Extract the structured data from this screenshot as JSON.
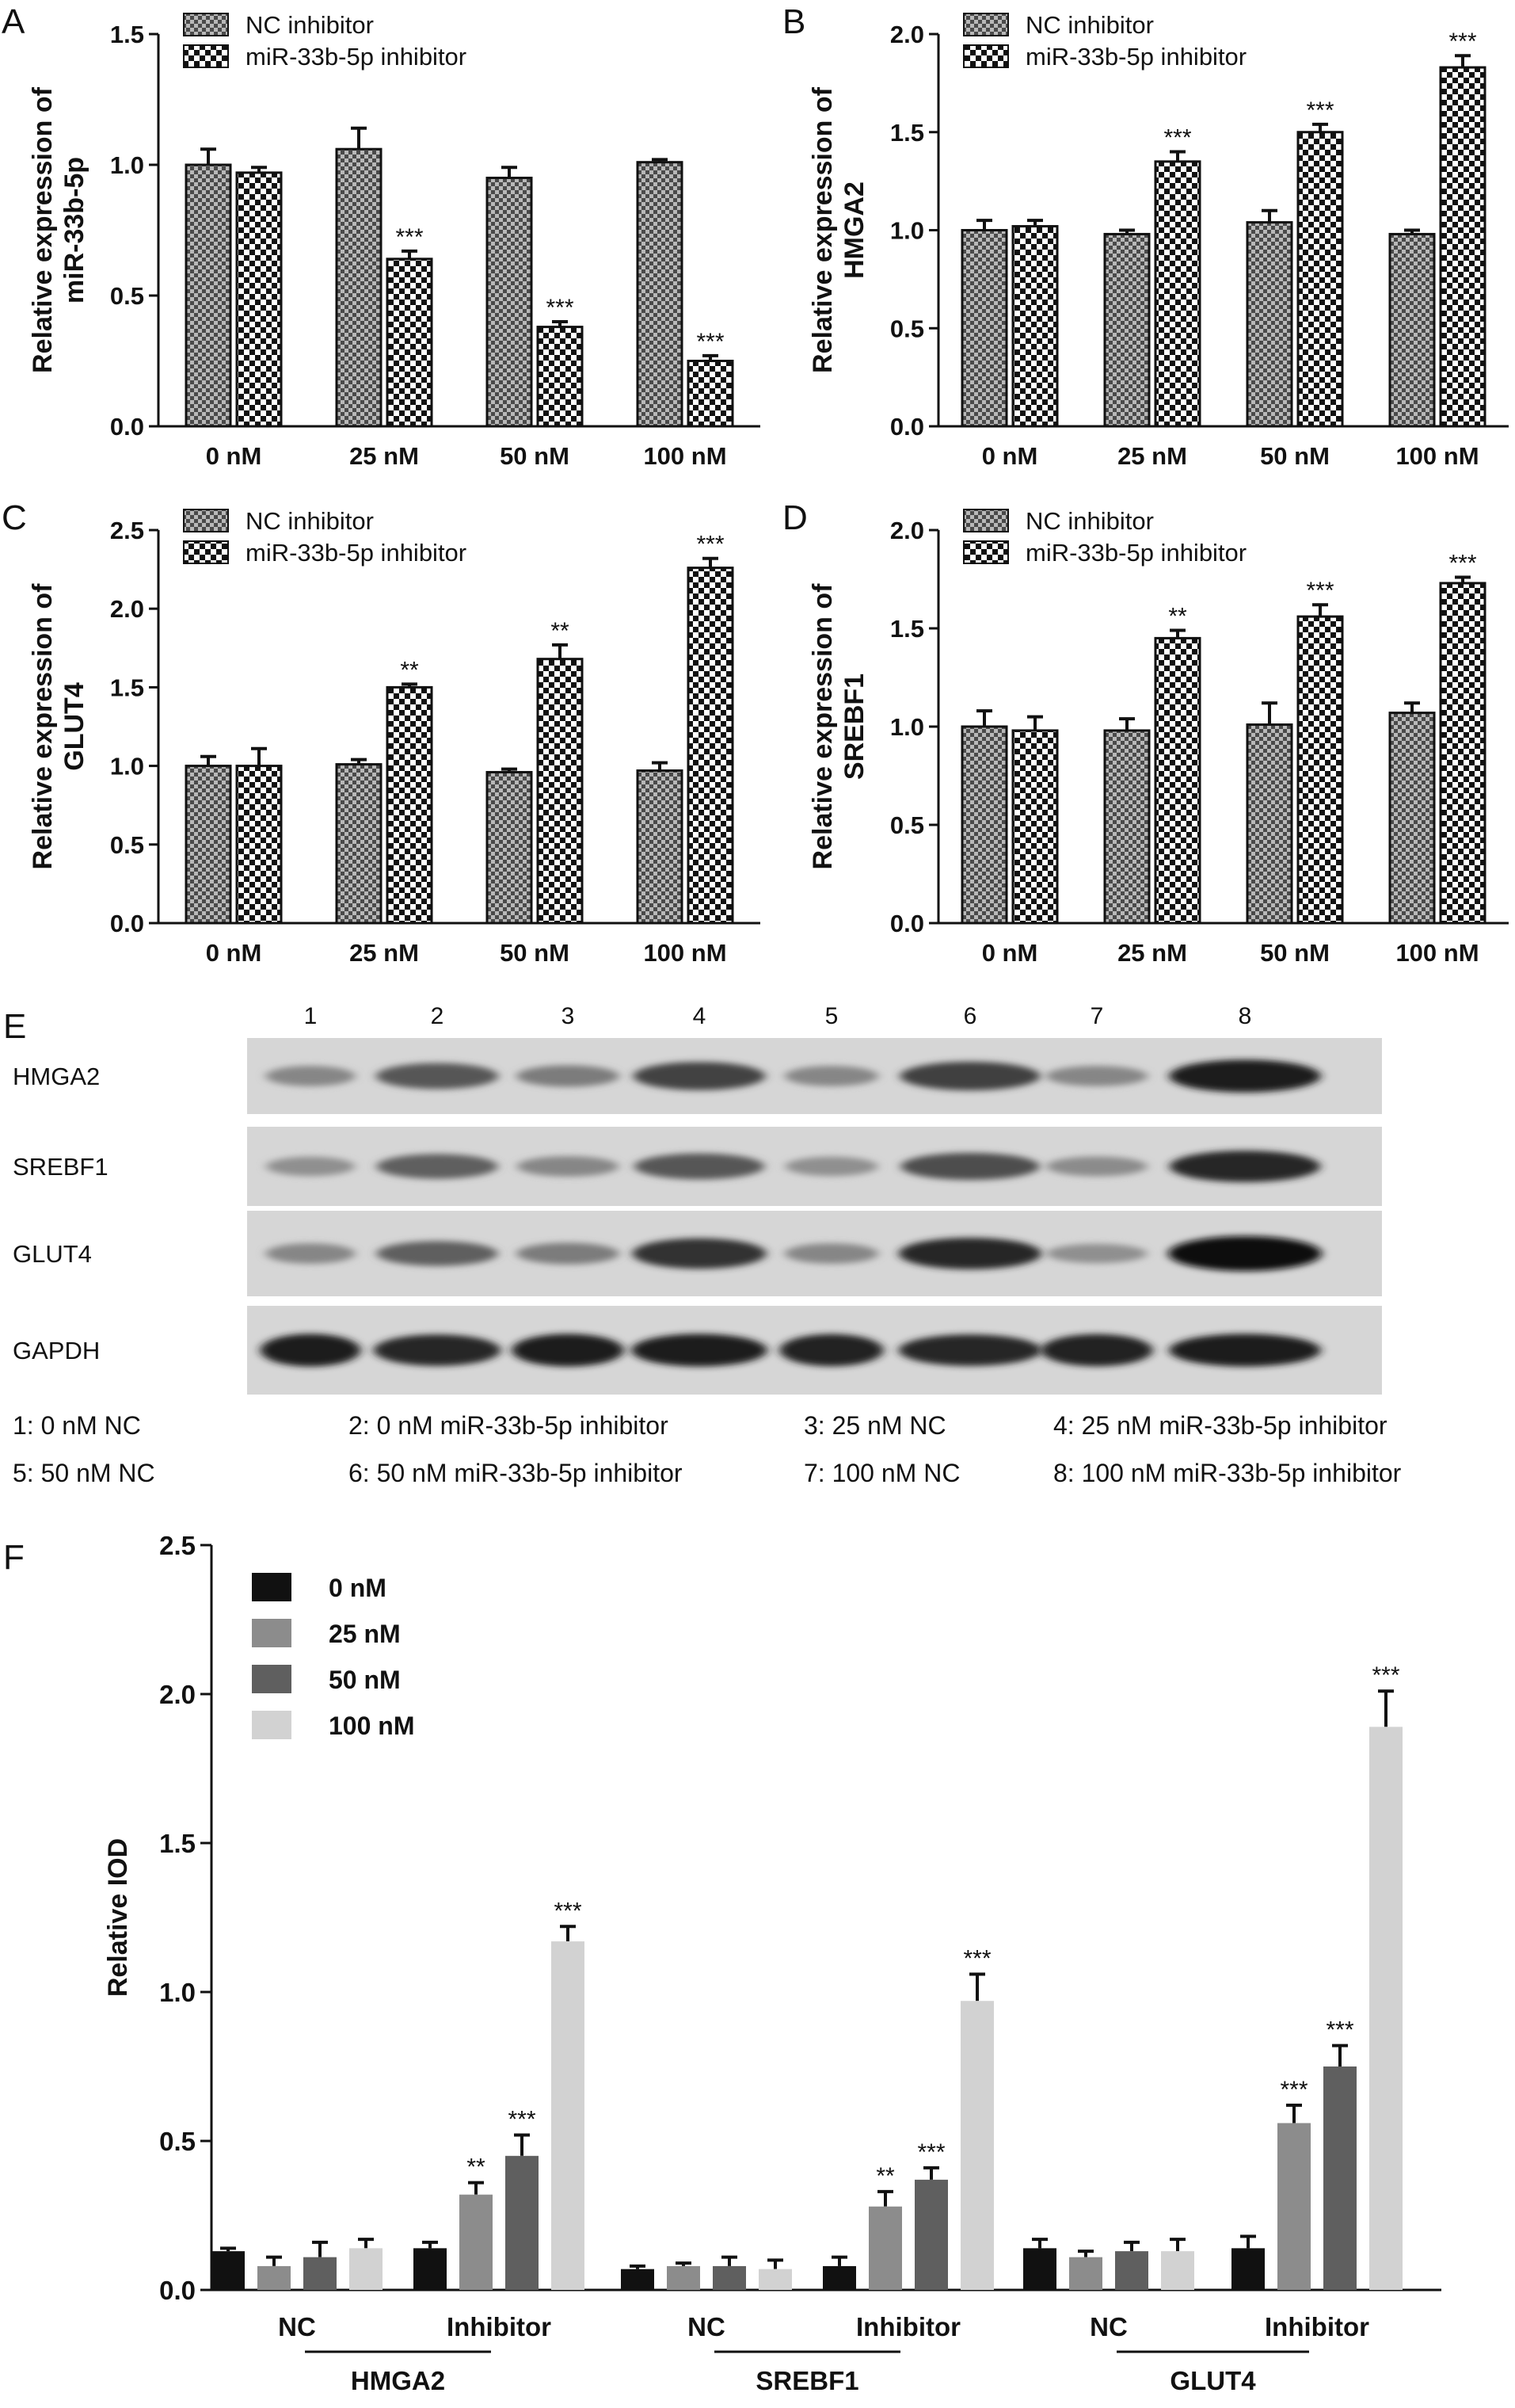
{
  "chart_data": [
    {
      "panel": "A",
      "type": "bar",
      "categories": [
        "0 nM",
        "25 nM",
        "50 nM",
        "100 nM"
      ],
      "ylabel": [
        "Relative expression of",
        "miR-33b-5p"
      ],
      "ylim": [
        0,
        1.5
      ],
      "yticks": [
        "0.0",
        "0.5",
        "1.0",
        "1.5"
      ],
      "series": [
        {
          "name": "NC inhibitor",
          "values": [
            1.0,
            1.06,
            0.95,
            1.01
          ],
          "errors": [
            0.06,
            0.08,
            0.04,
            0.01
          ]
        },
        {
          "name": "miR-33b-5p inhibitor",
          "values": [
            0.97,
            0.64,
            0.38,
            0.25
          ],
          "errors": [
            0.02,
            0.03,
            0.02,
            0.02
          ]
        }
      ],
      "significance": [
        "",
        "***",
        "***",
        "***"
      ],
      "legend": "top-left"
    },
    {
      "panel": "B",
      "type": "bar",
      "categories": [
        "0 nM",
        "25 nM",
        "50 nM",
        "100 nM"
      ],
      "ylabel": [
        "Relative expression of",
        "HMGA2"
      ],
      "ylim": [
        0,
        2.0
      ],
      "yticks": [
        "0.0",
        "0.5",
        "1.0",
        "1.5",
        "2.0"
      ],
      "series": [
        {
          "name": "NC inhibitor",
          "values": [
            1.0,
            0.98,
            1.04,
            0.98
          ],
          "errors": [
            0.05,
            0.02,
            0.06,
            0.02
          ]
        },
        {
          "name": "miR-33b-5p inhibitor",
          "values": [
            1.02,
            1.35,
            1.5,
            1.83
          ],
          "errors": [
            0.03,
            0.05,
            0.04,
            0.06
          ]
        }
      ],
      "significance": [
        "",
        "***",
        "***",
        "***"
      ],
      "legend": "top-left"
    },
    {
      "panel": "C",
      "type": "bar",
      "categories": [
        "0 nM",
        "25 nM",
        "50 nM",
        "100 nM"
      ],
      "ylabel": [
        "Relative expression of",
        "GLUT4"
      ],
      "ylim": [
        0,
        2.5
      ],
      "yticks": [
        "0.0",
        "0.5",
        "1.0",
        "1.5",
        "2.0",
        "2.5"
      ],
      "series": [
        {
          "name": "NC inhibitor",
          "values": [
            1.0,
            1.01,
            0.96,
            0.97
          ],
          "errors": [
            0.06,
            0.03,
            0.02,
            0.05
          ]
        },
        {
          "name": "miR-33b-5p inhibitor",
          "values": [
            1.0,
            1.5,
            1.68,
            2.26
          ],
          "errors": [
            0.11,
            0.02,
            0.09,
            0.06
          ]
        }
      ],
      "significance": [
        "",
        "**",
        "**",
        "***"
      ],
      "legend": "top-left"
    },
    {
      "panel": "D",
      "type": "bar",
      "categories": [
        "0 nM",
        "25 nM",
        "50 nM",
        "100 nM"
      ],
      "ylabel": [
        "Relative expression of",
        "SREBF1"
      ],
      "ylim": [
        0,
        2.0
      ],
      "yticks": [
        "0.0",
        "0.5",
        "1.0",
        "1.5",
        "2.0"
      ],
      "series": [
        {
          "name": "NC inhibitor",
          "values": [
            1.0,
            0.98,
            1.01,
            1.07
          ],
          "errors": [
            0.08,
            0.06,
            0.11,
            0.05
          ]
        },
        {
          "name": "miR-33b-5p inhibitor",
          "values": [
            0.98,
            1.45,
            1.56,
            1.73
          ],
          "errors": [
            0.07,
            0.04,
            0.06,
            0.03
          ]
        }
      ],
      "significance": [
        "",
        "**",
        "***",
        "***"
      ],
      "legend": "top-left"
    },
    {
      "panel": "F",
      "type": "bar",
      "ylabel": "Relative IOD",
      "ylim": [
        0,
        2.5
      ],
      "yticks": [
        "0.0",
        "0.5",
        "1.0",
        "1.5",
        "2.0",
        "2.5"
      ],
      "groups": [
        {
          "gene": "HMGA2",
          "subgroups": [
            {
              "name": "NC",
              "values": [
                0.13,
                0.08,
                0.11,
                0.14
              ],
              "errors": [
                0.01,
                0.03,
                0.05,
                0.03
              ],
              "significance": [
                "",
                "",
                "",
                ""
              ]
            },
            {
              "name": "Inhibitor",
              "values": [
                0.14,
                0.32,
                0.45,
                1.17
              ],
              "errors": [
                0.02,
                0.04,
                0.07,
                0.05
              ],
              "significance": [
                "",
                "**",
                "***",
                "***"
              ]
            }
          ]
        },
        {
          "gene": "SREBF1",
          "subgroups": [
            {
              "name": "NC",
              "values": [
                0.07,
                0.08,
                0.08,
                0.07
              ],
              "errors": [
                0.01,
                0.01,
                0.03,
                0.03
              ],
              "significance": [
                "",
                "",
                "",
                ""
              ]
            },
            {
              "name": "Inhibitor",
              "values": [
                0.08,
                0.28,
                0.37,
                0.97
              ],
              "errors": [
                0.03,
                0.05,
                0.04,
                0.09
              ],
              "significance": [
                "",
                "**",
                "***",
                "***"
              ]
            }
          ]
        },
        {
          "gene": "GLUT4",
          "subgroups": [
            {
              "name": "NC",
              "values": [
                0.14,
                0.11,
                0.13,
                0.13
              ],
              "errors": [
                0.03,
                0.02,
                0.03,
                0.04
              ],
              "significance": [
                "",
                "",
                "",
                ""
              ]
            },
            {
              "name": "Inhibitor",
              "values": [
                0.14,
                0.56,
                0.75,
                1.89
              ],
              "errors": [
                0.04,
                0.06,
                0.07,
                0.12
              ],
              "significance": [
                "",
                "***",
                "***",
                "***"
              ]
            }
          ]
        }
      ],
      "series_names": [
        "0 nM",
        "25 nM",
        "50 nM",
        "100 nM"
      ],
      "series_colors": [
        "#111111",
        "#8c8c8c",
        "#5f5f5f",
        "#d2d2d2"
      ],
      "legend": "top-left"
    }
  ],
  "figure": {
    "panel_letters": [
      "A",
      "B",
      "C",
      "D",
      "E",
      "F"
    ],
    "blot": {
      "lane_numbers": [
        "1",
        "2",
        "3",
        "4",
        "5",
        "6",
        "7",
        "8"
      ],
      "rows": [
        {
          "label": "HMGA2",
          "intensity": [
            0.35,
            0.6,
            0.4,
            0.7,
            0.35,
            0.72,
            0.35,
            0.9
          ]
        },
        {
          "label": "SREBF1",
          "intensity": [
            0.3,
            0.55,
            0.35,
            0.6,
            0.3,
            0.65,
            0.32,
            0.85
          ]
        },
        {
          "label": "GLUT4",
          "intensity": [
            0.35,
            0.55,
            0.4,
            0.8,
            0.35,
            0.85,
            0.3,
            1.0
          ]
        },
        {
          "label": "GAPDH",
          "intensity": [
            0.9,
            0.85,
            0.9,
            0.9,
            0.88,
            0.85,
            0.88,
            0.9
          ]
        }
      ],
      "key_rows": [
        [
          "1: 0 nM NC",
          "2: 0 nM miR-33b-5p inhibitor",
          "3: 25 nM NC",
          "4: 25 nM miR-33b-5p inhibitor"
        ],
        [
          "5: 50 nM NC",
          "6: 50 nM miR-33b-5p inhibitor",
          "7: 100 nM NC",
          "8: 100 nM miR-33b-5p inhibitor"
        ]
      ]
    }
  }
}
